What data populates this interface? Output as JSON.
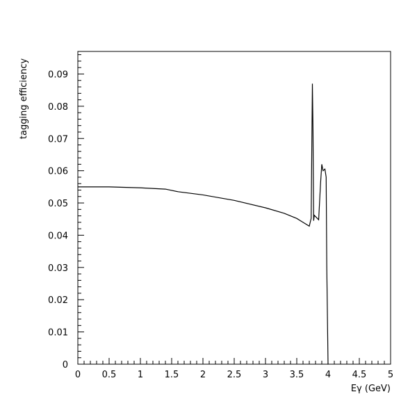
{
  "chart_data": {
    "type": "line",
    "title": "",
    "xlabel": "Eγ (GeV)",
    "ylabel": "tagging efficiency",
    "xlim": [
      0,
      5
    ],
    "ylim": [
      0,
      0.097
    ],
    "grid": false,
    "legend": "none",
    "x_ticks": [
      0,
      0.5,
      1,
      1.5,
      2,
      2.5,
      3,
      3.5,
      4,
      4.5,
      5
    ],
    "x_tick_labels": [
      "0",
      "0.5",
      "1",
      "1.5",
      "2",
      "2.5",
      "3",
      "3.5",
      "4",
      "4.5",
      "5"
    ],
    "y_ticks": [
      0,
      0.01,
      0.02,
      0.03,
      0.04,
      0.05,
      0.06,
      0.07,
      0.08,
      0.09
    ],
    "y_tick_labels": [
      "0",
      "0.01",
      "0.02",
      "0.03",
      "0.04",
      "0.05",
      "0.06",
      "0.07",
      "0.08",
      "0.09"
    ],
    "colors": {
      "line": "#000000",
      "axes": "#000000",
      "background": "#ffffff"
    },
    "series": [
      {
        "x": [
          0,
          0.5,
          1.0,
          1.4,
          1.6,
          2.0,
          2.5,
          3.0,
          3.3,
          3.5,
          3.6,
          3.7,
          3.73,
          3.75,
          3.76,
          3.77,
          3.78,
          3.8,
          3.85,
          3.88,
          3.9,
          3.92,
          3.95,
          3.97,
          3.98,
          4.0,
          4.005
        ],
        "y": [
          0.055,
          0.055,
          0.0547,
          0.0543,
          0.0535,
          0.0525,
          0.0508,
          0.0485,
          0.0468,
          0.0452,
          0.044,
          0.0428,
          0.0452,
          0.087,
          0.072,
          0.0445,
          0.0462,
          0.0458,
          0.0448,
          0.056,
          0.062,
          0.06,
          0.0605,
          0.058,
          0.03,
          0.0,
          0.0
        ]
      }
    ]
  }
}
